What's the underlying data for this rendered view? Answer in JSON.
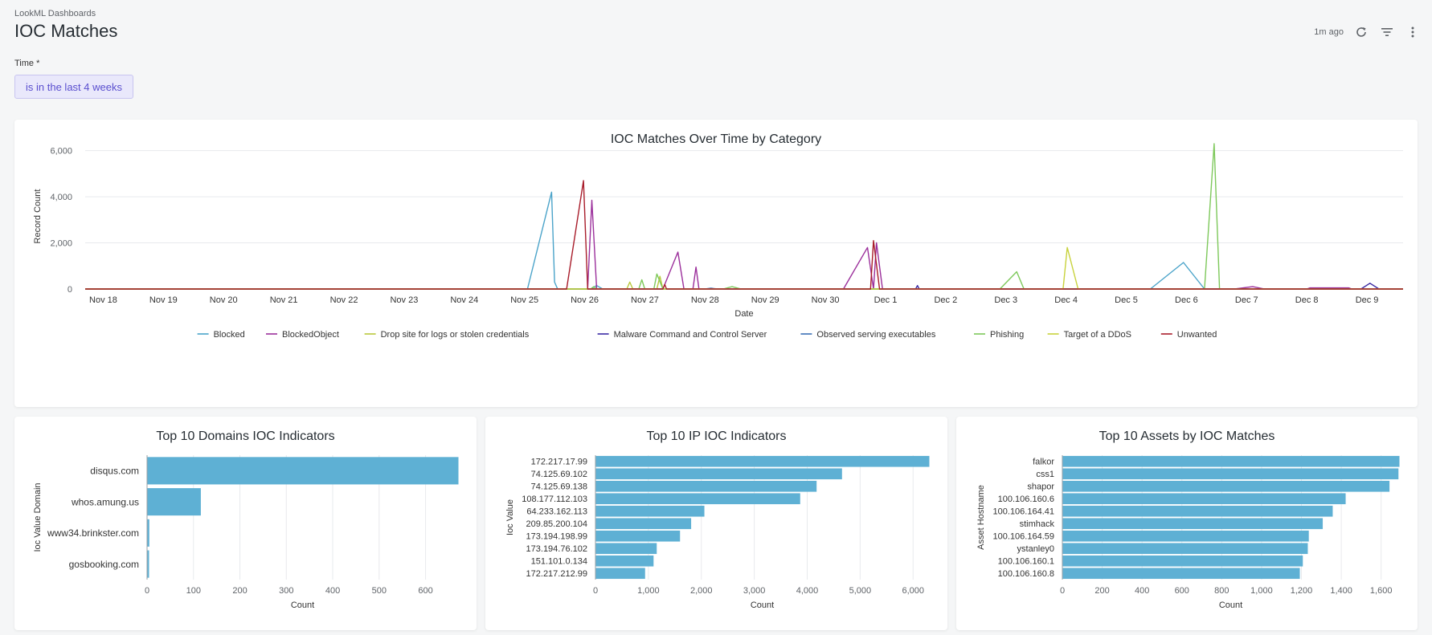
{
  "header": {
    "breadcrumb": "LookML Dashboards",
    "title": "IOC Matches",
    "updated": "1m ago"
  },
  "filter": {
    "label": "Time *",
    "value": "is in the last 4 weeks"
  },
  "colors": {
    "bar": "#5eb0d4",
    "grid": "#e8eaed",
    "axis": "#5f6368",
    "filter_accent": "#5a4fcf"
  },
  "chart_data": [
    {
      "type": "line",
      "title": "IOC Matches Over Time by Category",
      "xlabel": "Date",
      "ylabel": "Record Count",
      "x_ticks": [
        "Nov 18",
        "Nov 19",
        "Nov 20",
        "Nov 21",
        "Nov 22",
        "Nov 23",
        "Nov 24",
        "Nov 25",
        "Nov 26",
        "Nov 27",
        "Nov 28",
        "Nov 29",
        "Nov 30",
        "Dec 1",
        "Dec 2",
        "Dec 3",
        "Dec 4",
        "Dec 5",
        "Dec 6",
        "Dec 7",
        "Dec 8",
        "Dec 9"
      ],
      "x_range": [
        -0.3,
        21.6
      ],
      "y_ticks": [
        0,
        2000,
        4000,
        6000
      ],
      "y_tick_labels": [
        "0",
        "2,000",
        "4,000",
        "6,000"
      ],
      "ylim": [
        0,
        6300
      ],
      "grid": true,
      "legend_position": "bottom",
      "series": [
        {
          "name": "Blocked",
          "color": "#4aa3c9",
          "points": [
            [
              -0.3,
              0
            ],
            [
              7.05,
              0
            ],
            [
              7.45,
              4200
            ],
            [
              7.5,
              300
            ],
            [
              7.55,
              0
            ],
            [
              8.1,
              0
            ],
            [
              8.2,
              150
            ],
            [
              8.3,
              0
            ],
            [
              17.4,
              0
            ],
            [
              17.95,
              1150
            ],
            [
              18.3,
              0
            ],
            [
              21.6,
              0
            ]
          ]
        },
        {
          "name": "BlockedObject",
          "color": "#9b2f9b",
          "points": [
            [
              -0.3,
              0
            ],
            [
              8.05,
              0
            ],
            [
              8.12,
              3850
            ],
            [
              8.2,
              0
            ],
            [
              9.3,
              0
            ],
            [
              9.55,
              1600
            ],
            [
              9.65,
              0
            ],
            [
              9.8,
              0
            ],
            [
              9.85,
              950
            ],
            [
              9.9,
              0
            ],
            [
              10.7,
              0
            ],
            [
              12.3,
              0
            ],
            [
              12.7,
              1800
            ],
            [
              12.8,
              0
            ],
            [
              12.85,
              2000
            ],
            [
              12.95,
              0
            ],
            [
              18.8,
              0
            ],
            [
              19.1,
              100
            ],
            [
              19.3,
              0
            ],
            [
              20.0,
              0
            ],
            [
              20.05,
              50
            ],
            [
              20.7,
              50
            ],
            [
              20.75,
              0
            ],
            [
              21.6,
              0
            ]
          ]
        },
        {
          "name": "Drop site for logs or stolen credentials",
          "color": "#b9c83c",
          "points": [
            [
              -0.3,
              0
            ],
            [
              8.7,
              0
            ],
            [
              8.75,
              300
            ],
            [
              8.8,
              0
            ],
            [
              9.2,
              0
            ],
            [
              9.25,
              550
            ],
            [
              9.3,
              0
            ],
            [
              21.6,
              0
            ]
          ]
        },
        {
          "name": "Malware Command and Control Server",
          "color": "#3b2aa3",
          "points": [
            [
              -0.3,
              0
            ],
            [
              13.5,
              0
            ],
            [
              13.53,
              150
            ],
            [
              13.56,
              0
            ],
            [
              20.9,
              0
            ],
            [
              21.05,
              250
            ],
            [
              21.2,
              0
            ],
            [
              21.6,
              0
            ]
          ]
        },
        {
          "name": "Observed serving executables",
          "color": "#3b6fb5",
          "points": [
            [
              -0.3,
              0
            ],
            [
              10.0,
              0
            ],
            [
              10.1,
              40
            ],
            [
              10.2,
              0
            ],
            [
              21.6,
              0
            ]
          ]
        },
        {
          "name": "Phishing",
          "color": "#7dc85a",
          "points": [
            [
              -0.3,
              0
            ],
            [
              8.1,
              0
            ],
            [
              8.15,
              100
            ],
            [
              8.2,
              0
            ],
            [
              8.9,
              0
            ],
            [
              8.95,
              400
            ],
            [
              9.0,
              0
            ],
            [
              9.15,
              0
            ],
            [
              9.2,
              650
            ],
            [
              9.3,
              0
            ],
            [
              10.3,
              0
            ],
            [
              10.45,
              100
            ],
            [
              10.6,
              0
            ],
            [
              14.9,
              0
            ],
            [
              15.18,
              750
            ],
            [
              15.3,
              0
            ],
            [
              18.3,
              0
            ],
            [
              18.46,
              6300
            ],
            [
              18.55,
              0
            ],
            [
              21.6,
              0
            ]
          ]
        },
        {
          "name": "Target of a DDoS",
          "color": "#c8d23c",
          "points": [
            [
              -0.3,
              0
            ],
            [
              15.95,
              0
            ],
            [
              16.02,
              1800
            ],
            [
              16.2,
              0
            ],
            [
              21.6,
              0
            ]
          ]
        },
        {
          "name": "Unwanted",
          "color": "#a81c2a",
          "points": [
            [
              -0.3,
              0
            ],
            [
              7.7,
              0
            ],
            [
              7.98,
              4700
            ],
            [
              8.05,
              0
            ],
            [
              9.3,
              0
            ],
            [
              9.33,
              200
            ],
            [
              9.36,
              0
            ],
            [
              12.75,
              0
            ],
            [
              12.8,
              2100
            ],
            [
              12.9,
              0
            ],
            [
              21.6,
              0
            ]
          ]
        }
      ]
    },
    {
      "type": "bar",
      "orientation": "horizontal",
      "title": "Top 10 Domains IOC Indicators",
      "xlabel": "Count",
      "ylabel": "Ioc Value Domain",
      "categories": [
        "disqus.com",
        "whos.amung.us",
        "www34.brinkster.com",
        "gosbooking.com"
      ],
      "values": [
        670,
        115,
        4,
        3
      ],
      "x_ticks": [
        0,
        100,
        200,
        300,
        400,
        500,
        600
      ],
      "x_tick_labels": [
        "0",
        "100",
        "200",
        "300",
        "400",
        "500",
        "600"
      ],
      "xlim": [
        0,
        670
      ],
      "grid": true
    },
    {
      "type": "bar",
      "orientation": "horizontal",
      "title": "Top 10 IP IOC Indicators",
      "xlabel": "Count",
      "ylabel": "Ioc Value",
      "categories": [
        "172.217.17.99",
        "74.125.69.102",
        "74.125.69.138",
        "108.177.112.103",
        "64.233.162.113",
        "209.85.200.104",
        "173.194.198.99",
        "173.194.76.102",
        "151.101.0.134",
        "172.217.212.99"
      ],
      "values": [
        6300,
        4650,
        4170,
        3860,
        2050,
        1800,
        1590,
        1150,
        1090,
        930
      ],
      "x_ticks": [
        0,
        1000,
        2000,
        3000,
        4000,
        5000,
        6000
      ],
      "x_tick_labels": [
        "0",
        "1,000",
        "2,000",
        "3,000",
        "4,000",
        "5,000",
        "6,000"
      ],
      "xlim": [
        0,
        6300
      ],
      "grid": true
    },
    {
      "type": "bar",
      "orientation": "horizontal",
      "title": "Top 10 Assets by IOC Matches",
      "xlabel": "Count",
      "ylabel": "Asset Hostname",
      "categories": [
        "falkor",
        "css1",
        "shapor",
        "100.106.160.6",
        "100.106.164.41",
        "stimhack",
        "100.106.164.59",
        "ystanley0",
        "100.106.160.1",
        "100.106.160.8"
      ],
      "values": [
        1690,
        1685,
        1640,
        1420,
        1355,
        1305,
        1235,
        1230,
        1205,
        1190
      ],
      "x_ticks": [
        0,
        200,
        400,
        600,
        800,
        1000,
        1200,
        1400,
        1600
      ],
      "x_tick_labels": [
        "0",
        "200",
        "400",
        "600",
        "800",
        "1,000",
        "1,200",
        "1,400",
        "1,600"
      ],
      "xlim": [
        0,
        1690
      ],
      "grid": true
    }
  ]
}
